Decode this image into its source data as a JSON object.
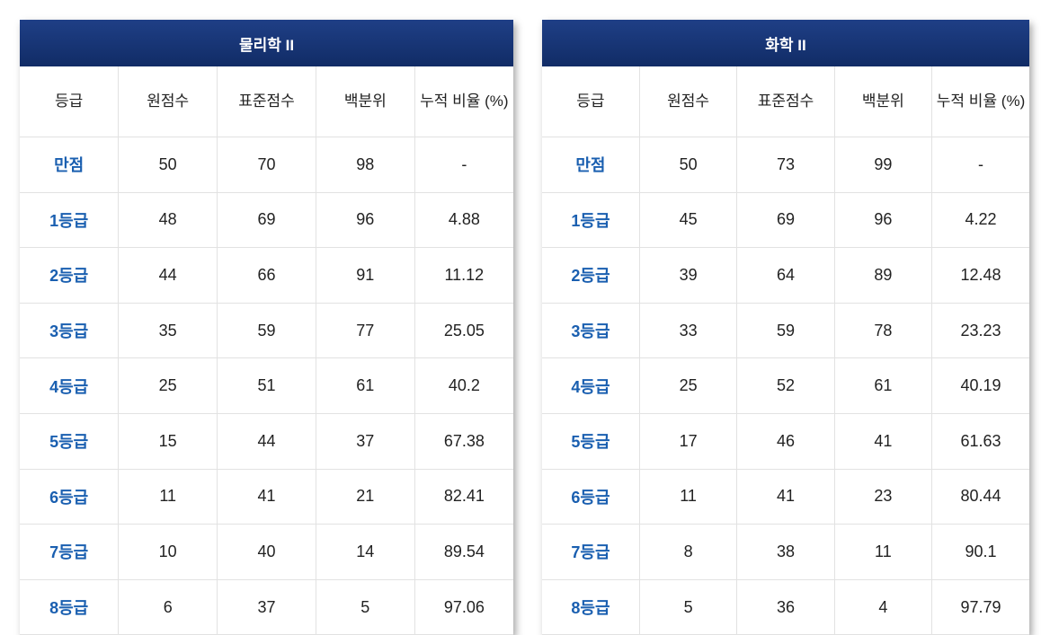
{
  "columns": [
    "등급",
    "원점수",
    "표준점수",
    "백분위",
    "누적 비율 (%)"
  ],
  "colors": {
    "header_bg": "#16336f",
    "grade_text": "#1a5fb0"
  },
  "tables": [
    {
      "title": "물리학 II",
      "rows": [
        [
          "만점",
          "50",
          "70",
          "98",
          "-"
        ],
        [
          "1등급",
          "48",
          "69",
          "96",
          "4.88"
        ],
        [
          "2등급",
          "44",
          "66",
          "91",
          "11.12"
        ],
        [
          "3등급",
          "35",
          "59",
          "77",
          "25.05"
        ],
        [
          "4등급",
          "25",
          "51",
          "61",
          "40.2"
        ],
        [
          "5등급",
          "15",
          "44",
          "37",
          "67.38"
        ],
        [
          "6등급",
          "11",
          "41",
          "21",
          "82.41"
        ],
        [
          "7등급",
          "10",
          "40",
          "14",
          "89.54"
        ],
        [
          "8등급",
          "6",
          "37",
          "5",
          "97.06"
        ]
      ]
    },
    {
      "title": "화학 II",
      "rows": [
        [
          "만점",
          "50",
          "73",
          "99",
          "-"
        ],
        [
          "1등급",
          "45",
          "69",
          "96",
          "4.22"
        ],
        [
          "2등급",
          "39",
          "64",
          "89",
          "12.48"
        ],
        [
          "3등급",
          "33",
          "59",
          "78",
          "23.23"
        ],
        [
          "4등급",
          "25",
          "52",
          "61",
          "40.19"
        ],
        [
          "5등급",
          "17",
          "46",
          "41",
          "61.63"
        ],
        [
          "6등급",
          "11",
          "41",
          "23",
          "80.44"
        ],
        [
          "7등급",
          "8",
          "38",
          "11",
          "90.1"
        ],
        [
          "8등급",
          "5",
          "36",
          "4",
          "97.79"
        ]
      ]
    }
  ]
}
